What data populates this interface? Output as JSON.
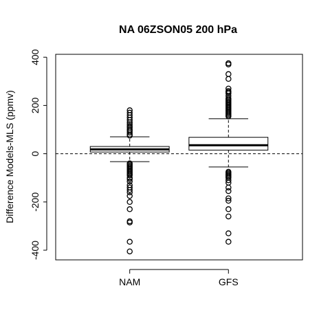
{
  "chart_data": {
    "type": "boxplot",
    "title": "NA 06ZSON05 200 hPa",
    "xlabel": "",
    "ylabel": "Difference Models-MLS (ppmv)",
    "ylim": [
      -440,
      412
    ],
    "yticks": [
      -400,
      -200,
      0,
      200,
      400
    ],
    "reference_line": 0,
    "categories": [
      "NAM",
      "GFS"
    ],
    "boxes": [
      {
        "name": "NAM",
        "whisker_low": -33,
        "q1": 7,
        "median": 18,
        "q3": 30,
        "whisker_high": 70,
        "outliers_high": [
          75,
          80,
          88,
          95,
          100,
          108,
          115,
          122,
          130,
          140,
          150,
          160,
          170,
          180
        ],
        "outliers_low": [
          -40,
          -45,
          -50,
          -55,
          -60,
          -65,
          -70,
          -75,
          -80,
          -85,
          -90,
          -100,
          -105,
          -115,
          -130,
          -140,
          -150,
          -160,
          -175,
          -200,
          -230,
          -280,
          -285,
          -365,
          -405
        ]
      },
      {
        "name": "GFS",
        "whisker_low": -55,
        "q1": 15,
        "median": 35,
        "q3": 68,
        "whisker_high": 145,
        "outliers_high": [
          155,
          160,
          165,
          170,
          175,
          180,
          185,
          190,
          195,
          200,
          205,
          210,
          215,
          220,
          225,
          230,
          240,
          250,
          255,
          260,
          270,
          310,
          330,
          370,
          375
        ],
        "outliers_low": [
          -75,
          -80,
          -85,
          -90,
          -95,
          -100,
          -110,
          -120,
          -140,
          -155,
          -185,
          -195,
          -230,
          -260,
          -330,
          -365
        ]
      }
    ]
  }
}
